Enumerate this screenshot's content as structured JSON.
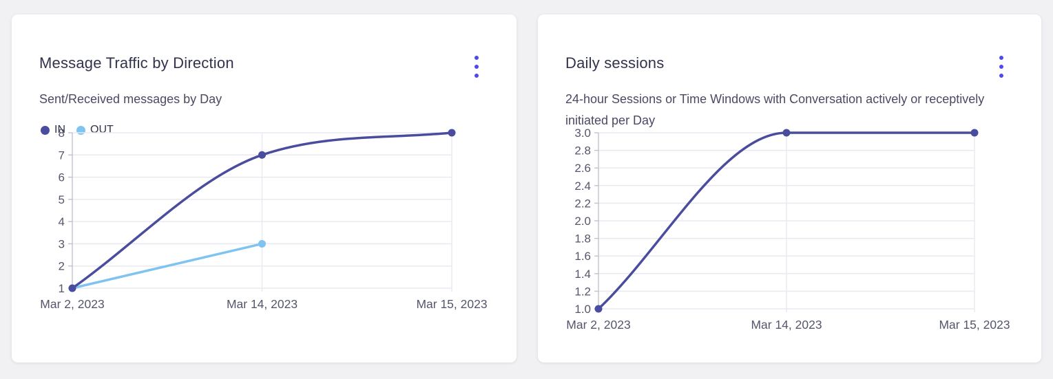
{
  "page": {
    "background_color": "#f1f1f4",
    "card_background": "#ffffff",
    "accent_color": "#4c48f2",
    "icons": {
      "card_menu": "kebab-vertical-dots"
    }
  },
  "chart_data": [
    {
      "type": "line",
      "title": "Message Traffic by Direction",
      "subtitle": "Sent/Received messages by Day",
      "categories": [
        "Mar 2, 2023",
        "Mar 14, 2023",
        "Mar 15, 2023"
      ],
      "series": [
        {
          "name": "IN",
          "color": "#4a4d9d",
          "values": [
            1,
            7,
            8
          ]
        },
        {
          "name": "OUT",
          "color": "#7fc3f1",
          "values": [
            1,
            3,
            null
          ]
        }
      ],
      "ylim": [
        1,
        8
      ],
      "ytick_step": 1,
      "ytick_decimals": 0,
      "grid": true,
      "legend": true,
      "legend_position": "top-left"
    },
    {
      "type": "line",
      "title": "Daily sessions",
      "subtitle": "24-hour Sessions or Time Windows with Conversation actively or receptively initiated per Day",
      "categories": [
        "Mar 2, 2023",
        "Mar 14, 2023",
        "Mar 15, 2023"
      ],
      "series": [
        {
          "name": "Daily sessions",
          "color": "#4a4d9d",
          "values": [
            1,
            3,
            3
          ]
        }
      ],
      "ylim": [
        1,
        3
      ],
      "ytick_step": 0.2,
      "ytick_decimals": 1,
      "grid": true,
      "legend": false
    }
  ],
  "style": {
    "grid_color": "#e9e9f0",
    "axis_color": "#c5c5d2",
    "tick_label_color": "#55556c",
    "title_color": "#32324d",
    "subtitle_color": "#4a4a63"
  }
}
